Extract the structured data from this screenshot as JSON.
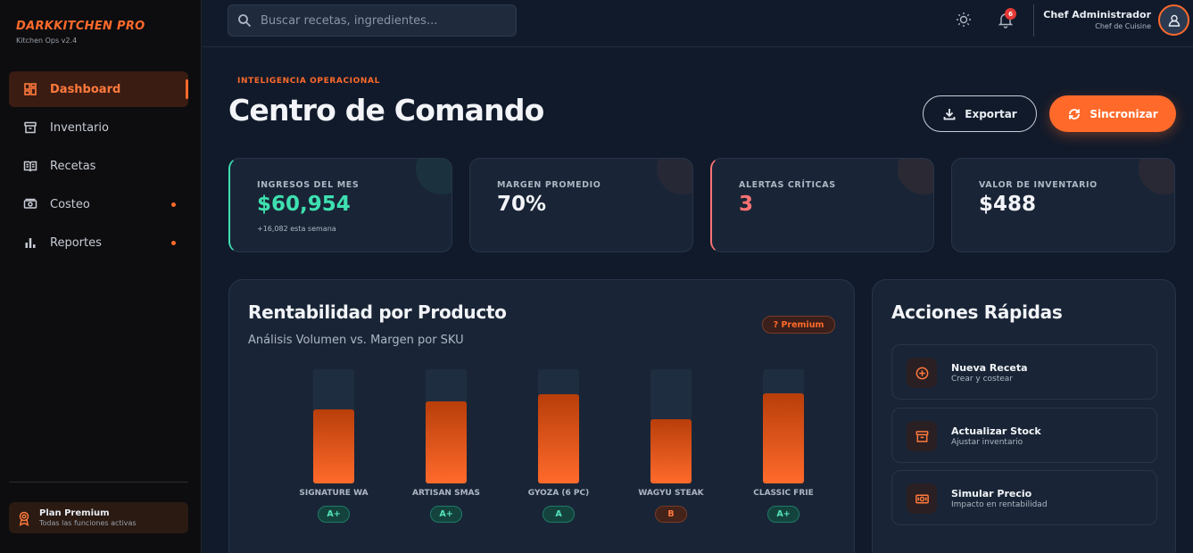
{
  "brand": {
    "name": "DARKKITCHEN PRO",
    "version": "Kitchen Ops v2.4"
  },
  "nav": [
    {
      "label": "Dashboard",
      "icon": "dashboard-icon",
      "active": true,
      "dot": false
    },
    {
      "label": "Inventario",
      "icon": "archive-icon",
      "active": false,
      "dot": false
    },
    {
      "label": "Recetas",
      "icon": "book-icon",
      "active": false,
      "dot": false
    },
    {
      "label": "Costeo",
      "icon": "money-icon",
      "active": false,
      "dot": true
    },
    {
      "label": "Reportes",
      "icon": "bar-chart-icon",
      "active": false,
      "dot": true
    }
  ],
  "plan": {
    "title": "Plan Premium",
    "subtitle": "Todas las funciones activas"
  },
  "search": {
    "placeholder": "Buscar recetas, ingredientes..."
  },
  "notifications": {
    "count": "6"
  },
  "user": {
    "name": "Chef Administrador",
    "role": "Chef de Cuisine"
  },
  "header": {
    "eyebrow": "INTELIGENCIA OPERACIONAL",
    "title": "Centro de Comando",
    "export_label": "Exportar",
    "sync_label": "Sincronizar"
  },
  "kpis": [
    {
      "label": "INGRESOS DEL MES",
      "value": "$60,954",
      "sub": "+16,082 esta semana",
      "color": "#3ee0b0",
      "accent": "#3ee0b0"
    },
    {
      "label": "MARGEN PROMEDIO",
      "value": "70%",
      "sub": "",
      "color": "#f2f4f8",
      "accent": ""
    },
    {
      "label": "ALERTAS CRÍTICAS",
      "value": "3",
      "sub": "",
      "color": "#ff7373",
      "accent": "#ff7373"
    },
    {
      "label": "VALOR DE INVENTARIO",
      "value": "$488",
      "sub": "",
      "color": "#f2f4f8",
      "accent": ""
    }
  ],
  "profitability": {
    "title": "Rentabilidad por Producto",
    "subtitle": "Análisis Volumen vs. Margen por SKU",
    "badge": "? Premium"
  },
  "chart_data": {
    "type": "bar",
    "categories": [
      "SIGNATURE WA",
      "ARTISAN SMAS",
      "GYOZA (6 PC)",
      "WAGYU STEAK",
      "CLASSIC FRIE"
    ],
    "values": [
      65,
      72,
      78,
      56,
      79
    ],
    "grades": [
      "A+",
      "A+",
      "A",
      "B",
      "A+"
    ],
    "ylim": [
      0,
      100
    ]
  },
  "actions": {
    "title": "Acciones Rápidas",
    "items": [
      {
        "title": "Nueva Receta",
        "subtitle": "Crear y costear",
        "icon": "plus-circle-icon"
      },
      {
        "title": "Actualizar Stock",
        "subtitle": "Ajustar inventario",
        "icon": "archive-icon"
      },
      {
        "title": "Simular Precio",
        "subtitle": "Impacto en rentabilidad",
        "icon": "money-icon"
      }
    ]
  }
}
